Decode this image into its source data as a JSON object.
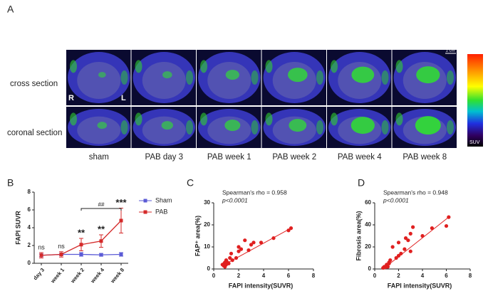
{
  "panel_a": {
    "label": "A",
    "rows": [
      "cross section",
      "coronal section"
    ],
    "columns": [
      "sham",
      "PAB day 3",
      "PAB week 1",
      "PAB week 2",
      "PAB week 4",
      "PAB week 8"
    ],
    "scale_bar": "1 cm",
    "colorbar_label": "SUV",
    "orientation": [
      "R",
      "L"
    ]
  },
  "chart_data": [
    {
      "type": "line",
      "panel_label": "B",
      "y_label": "FAPI SUVR",
      "categories": [
        "day 3",
        "week 1",
        "week 2",
        "week 4",
        "week 8"
      ],
      "series": [
        {
          "name": "Sham",
          "color": "#5b5bd6",
          "values": [
            0.9,
            1.0,
            1.0,
            0.95,
            1.0
          ],
          "errors": [
            0.15,
            0.15,
            0.2,
            0.15,
            0.2
          ]
        },
        {
          "name": "PAB",
          "color": "#d42a2a",
          "values": [
            0.9,
            1.0,
            2.1,
            2.5,
            4.8
          ],
          "errors": [
            0.3,
            0.3,
            0.7,
            0.7,
            1.4
          ]
        }
      ],
      "annotations": [
        "ns",
        "ns",
        "**",
        "**",
        "***"
      ],
      "bracket_label": "##",
      "ylim": [
        0,
        8
      ],
      "yticks": [
        0,
        2,
        4,
        6,
        8
      ],
      "legend": "right"
    },
    {
      "type": "scatter",
      "panel_label": "C",
      "x_label": "FAPI intensity(SUVR)",
      "y_label": "FAP⁺ area(%)",
      "annotation": "Spearman's rho = 0.958",
      "p_text": "p<0.0001",
      "color": "#e02020",
      "x": [
        0.7,
        0.8,
        0.85,
        0.9,
        1.0,
        1.0,
        1.1,
        1.2,
        1.3,
        1.5,
        1.8,
        2.0,
        2.0,
        2.2,
        2.5,
        2.8,
        3.0,
        3.2,
        3.8,
        4.8,
        6.0,
        6.2,
        1.4,
        0.9
      ],
      "values": [
        2,
        1.5,
        2.5,
        3,
        2,
        4,
        3,
        2.5,
        5,
        4,
        5,
        8,
        10,
        9,
        13,
        8.5,
        11,
        12,
        12,
        14,
        17.5,
        18.5,
        7,
        1
      ],
      "trendline": {
        "x": [
          0.7,
          6.2
        ],
        "y": [
          1.5,
          18.5
        ]
      },
      "xlim": [
        0,
        8
      ],
      "xticks": [
        0,
        2,
        4,
        6,
        8
      ],
      "ylim": [
        0,
        30
      ],
      "yticks": [
        0,
        10,
        20,
        30
      ]
    },
    {
      "type": "scatter",
      "panel_label": "D",
      "x_label": "FAPI intensity(SUVR)",
      "y_label": "Fibrosis area(%)",
      "annotation": "Spearman's rho = 0.948",
      "p_text": "p<0.0001",
      "color": "#e02020",
      "x": [
        0.7,
        0.8,
        0.9,
        1.0,
        1.0,
        1.1,
        1.2,
        1.3,
        1.5,
        1.8,
        2.0,
        2.0,
        2.2,
        2.5,
        2.6,
        2.8,
        3.0,
        3.0,
        3.2,
        4.0,
        4.8,
        6.0,
        6.2,
        1.2
      ],
      "values": [
        1,
        2,
        1.5,
        3,
        4,
        2,
        5,
        8,
        20,
        10,
        12,
        24,
        14,
        18,
        28,
        26,
        16,
        32,
        38,
        30,
        37,
        39,
        47,
        6
      ],
      "trendline": {
        "x": [
          0.7,
          6.2
        ],
        "y": [
          0,
          47
        ]
      },
      "xlim": [
        0,
        8
      ],
      "xticks": [
        0,
        2,
        4,
        6,
        8
      ],
      "ylim": [
        0,
        60
      ],
      "yticks": [
        0,
        20,
        40,
        60
      ]
    }
  ]
}
